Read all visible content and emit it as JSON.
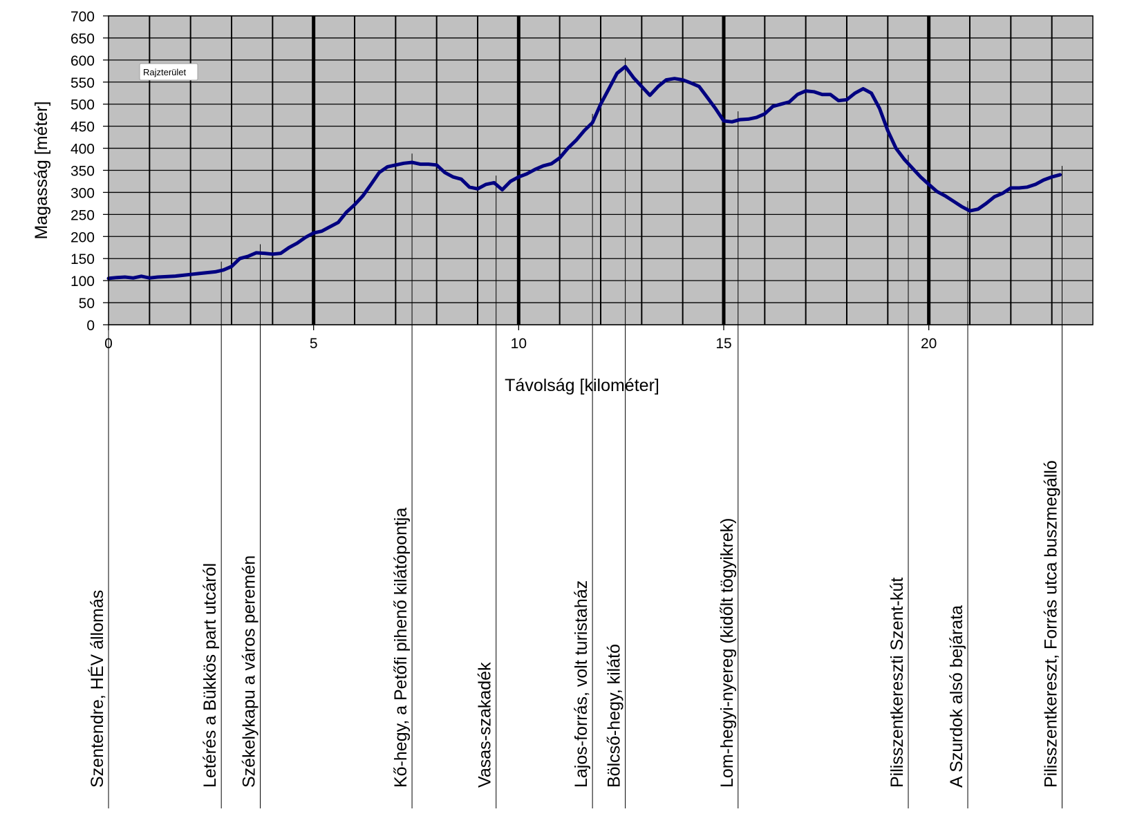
{
  "chart_data": {
    "type": "line",
    "title": "",
    "xlabel": "Távolság [kilométer]",
    "ylabel": "Magasság [méter]",
    "xlim": [
      0,
      24
    ],
    "ylim": [
      0,
      700
    ],
    "x_ticks": [
      0,
      5,
      10,
      15,
      20
    ],
    "x_tick_labels": [
      "0",
      "5",
      "10",
      "15",
      "20"
    ],
    "y_ticks": [
      0,
      50,
      100,
      150,
      200,
      250,
      300,
      350,
      400,
      450,
      500,
      550,
      600,
      650,
      700
    ],
    "y_tick_labels": [
      "0",
      "50",
      "100",
      "150",
      "200",
      "250",
      "300",
      "350",
      "400",
      "450",
      "500",
      "550",
      "600",
      "650",
      "700"
    ],
    "grid": true,
    "grid_x_step": 1,
    "grid_major_x": [
      5,
      10,
      15,
      20
    ],
    "plot_background": "#c0c0c0",
    "line_color": "#000080",
    "plot_area_tooltip": "Rajzterület",
    "series": [
      {
        "x": [
          0,
          0.2,
          0.4,
          0.6,
          0.8,
          1.0,
          1.2,
          1.4,
          1.6,
          1.8,
          2.0,
          2.2,
          2.4,
          2.6,
          2.8,
          3.0,
          3.2,
          3.4,
          3.6,
          3.8,
          4.0,
          4.2,
          4.4,
          4.6,
          4.8,
          5.0,
          5.2,
          5.4,
          5.6,
          5.8,
          6.0,
          6.2,
          6.4,
          6.6,
          6.8,
          7.0,
          7.2,
          7.4,
          7.6,
          7.8,
          8.0,
          8.2,
          8.4,
          8.6,
          8.8,
          9.0,
          9.2,
          9.4,
          9.6,
          9.8,
          10.0,
          10.2,
          10.4,
          10.6,
          10.8,
          11.0,
          11.2,
          11.4,
          11.6,
          11.8,
          12.0,
          12.2,
          12.4,
          12.6,
          12.8,
          13.0,
          13.2,
          13.4,
          13.6,
          13.8,
          14.0,
          14.2,
          14.4,
          14.6,
          14.8,
          15.0,
          15.2,
          15.4,
          15.6,
          15.8,
          16.0,
          16.2,
          16.4,
          16.6,
          16.8,
          17.0,
          17.2,
          17.4,
          17.6,
          17.8,
          18.0,
          18.2,
          18.4,
          18.6,
          18.8,
          19.0,
          19.2,
          19.4,
          19.6,
          19.8,
          20.0,
          20.2,
          20.4,
          20.6,
          20.8,
          21.0,
          21.2,
          21.4,
          21.6,
          21.8,
          22.0,
          22.2,
          22.4,
          22.6,
          22.8,
          23.0,
          23.2
        ],
        "y": [
          105,
          107,
          108,
          106,
          110,
          106,
          108,
          109,
          110,
          112,
          114,
          116,
          118,
          120,
          124,
          132,
          150,
          155,
          163,
          162,
          160,
          162,
          175,
          185,
          198,
          208,
          212,
          222,
          232,
          255,
          272,
          292,
          318,
          345,
          358,
          362,
          366,
          368,
          364,
          364,
          362,
          345,
          335,
          330,
          312,
          308,
          318,
          322,
          306,
          325,
          335,
          342,
          352,
          360,
          365,
          378,
          400,
          418,
          440,
          458,
          500,
          535,
          570,
          585,
          560,
          540,
          520,
          540,
          555,
          558,
          555,
          548,
          540,
          515,
          490,
          462,
          460,
          465,
          466,
          470,
          478,
          495,
          500,
          505,
          522,
          530,
          528,
          522,
          522,
          508,
          510,
          525,
          535,
          525,
          490,
          440,
          400,
          375,
          355,
          335,
          318,
          302,
          292,
          280,
          268,
          258,
          262,
          275,
          290,
          298,
          310,
          310,
          312,
          318,
          328,
          335,
          340
        ]
      }
    ],
    "waypoints": [
      {
        "km": 0.0,
        "label": "Szentendre, HÉV állomás"
      },
      {
        "km": 2.75,
        "label": "Letérés a Bükkös part utcáról"
      },
      {
        "km": 3.7,
        "label": "Székelykapu a város peremén"
      },
      {
        "km": 7.4,
        "label": "Kő-hegy, a Petőfi pihenő kilátópontja"
      },
      {
        "km": 9.45,
        "label": "Vasas-szakadék"
      },
      {
        "km": 11.8,
        "label": "Lajos-forrás, volt turistaház"
      },
      {
        "km": 12.6,
        "label": "Bölcső-hegy, kilátó"
      },
      {
        "km": 15.35,
        "label": "Lom-hegyi-nyereg (kidőlt tögyikrek)"
      },
      {
        "km": 19.5,
        "label": "Pilisszentkereszti Szent-kút"
      },
      {
        "km": 20.95,
        "label": "A Szurdok alsó bejárata"
      },
      {
        "km": 23.25,
        "label": "Pilisszentkereszt, Forrás utca buszmegálló"
      }
    ]
  }
}
